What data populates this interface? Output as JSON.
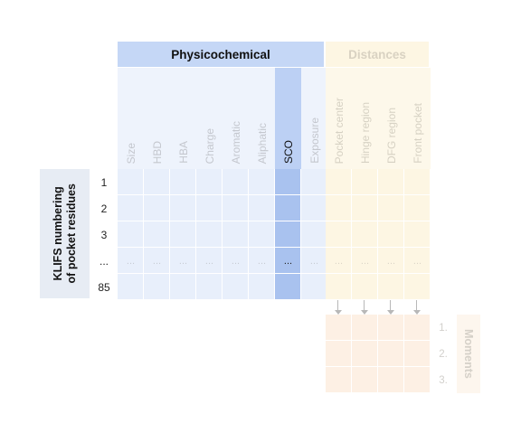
{
  "physicochemical": {
    "header": "Physicochemical",
    "features": [
      "Size",
      "HBD",
      "HBA",
      "Charge",
      "Aromatic",
      "Aliphatic",
      "SCO",
      "Exposure"
    ]
  },
  "distances": {
    "header": "Distances",
    "features": [
      "Pocket center",
      "Hinge region",
      "DFG region",
      "Front pocket"
    ]
  },
  "residues": {
    "label_line1": "KLIFS numbering",
    "label_line2": "of pocket residues",
    "rows": [
      "1",
      "2",
      "3",
      "...",
      "85"
    ]
  },
  "ellipsis": "...",
  "moments": {
    "label": "Moments",
    "rows": [
      "1.",
      "2.",
      "3."
    ]
  },
  "colors": {
    "physicochemical_header": "#c5d7f6",
    "sco_highlight": "#a9c2ef",
    "distances_header": "#fdf6e3",
    "moments_cells": "#fdf0e4"
  }
}
